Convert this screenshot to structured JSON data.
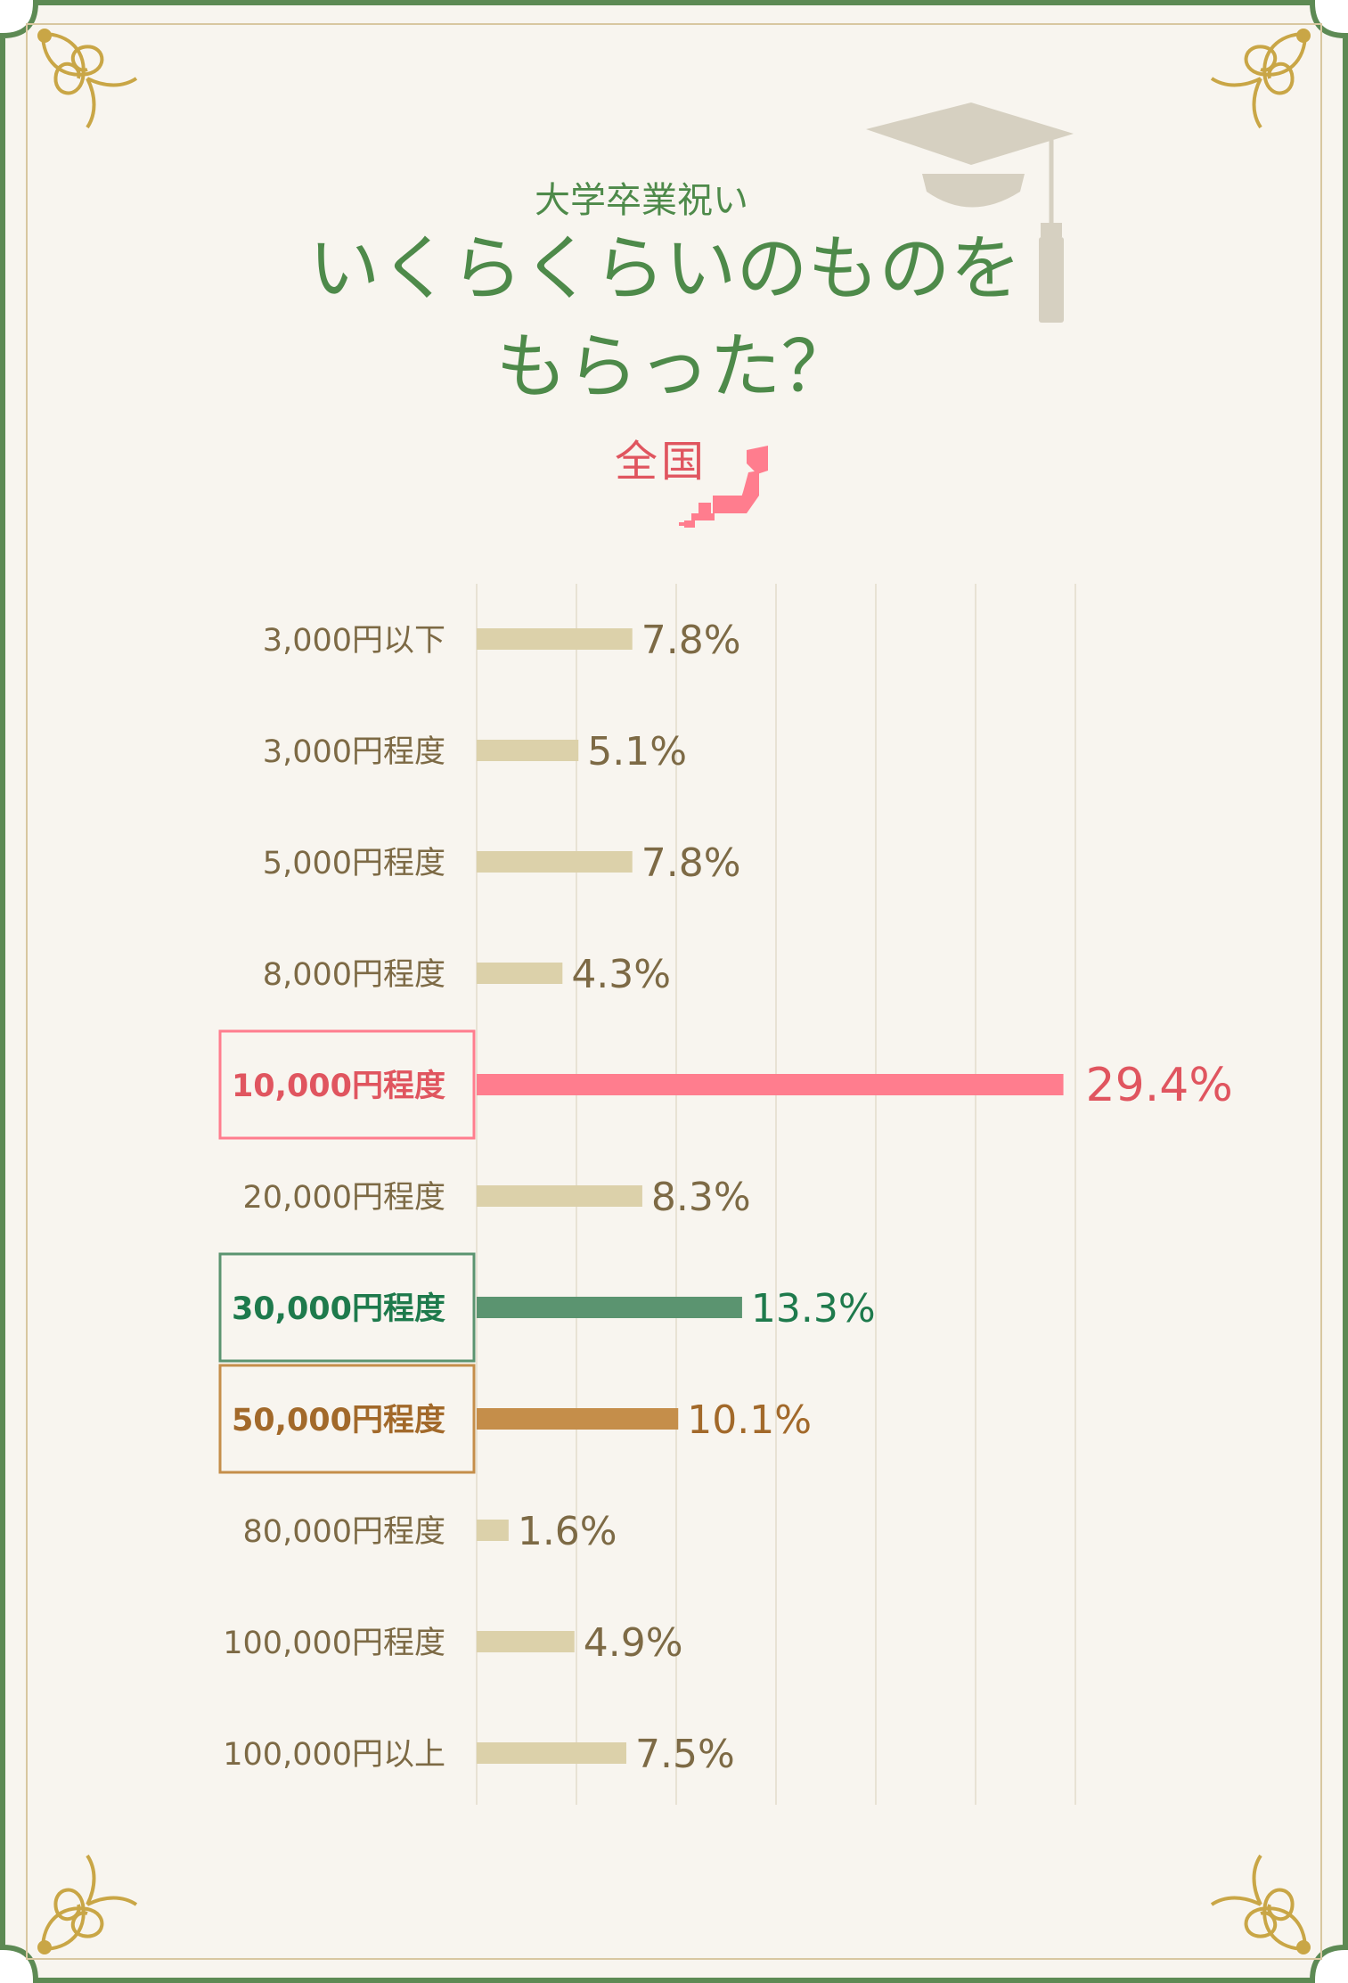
{
  "header": {
    "subtitle": "大学卒業祝い",
    "title_line1": "いくらくらいのものを",
    "title_line2": "もらった？",
    "region": "全国"
  },
  "icons": [
    "graduation-cap-icon",
    "japan-map-icon",
    "ornament-corner-icon"
  ],
  "colors": {
    "background": "#f8f5ef",
    "frame": "#5d8a54",
    "default_bar": "#dcd1aa",
    "default_text": "#7d6a45",
    "highlight_pink": "#ff7d8e",
    "highlight_pink_text": "#e0555f",
    "highlight_green": "#5b9470",
    "highlight_green_text": "#1e7a4c",
    "highlight_brown": "#c58e4a",
    "highlight_brown_text": "#a2692a"
  },
  "chart_data": {
    "type": "bar",
    "orientation": "horizontal",
    "title": "いくらくらいのものをもらった？",
    "xlim": [
      0,
      30
    ],
    "grid": true,
    "categories": [
      "3,000円以下",
      "3,000円程度",
      "5,000円程度",
      "8,000円程度",
      "10,000円程度",
      "20,000円程度",
      "30,000円程度",
      "50,000円程度",
      "80,000円程度",
      "100,000円程度",
      "100,000円以上"
    ],
    "values": [
      7.8,
      5.1,
      7.8,
      4.3,
      29.4,
      8.3,
      13.3,
      10.1,
      1.6,
      4.9,
      7.5
    ],
    "value_labels": [
      "7.8%",
      "5.1%",
      "7.8%",
      "4.3%",
      "29.4%",
      "8.3%",
      "13.3%",
      "10.1%",
      "1.6%",
      "4.9%",
      "7.5%"
    ],
    "highlights": [
      {
        "category": "10,000円程度",
        "color": "pink"
      },
      {
        "category": "30,000円程度",
        "color": "green"
      },
      {
        "category": "50,000円程度",
        "color": "brown"
      }
    ]
  }
}
